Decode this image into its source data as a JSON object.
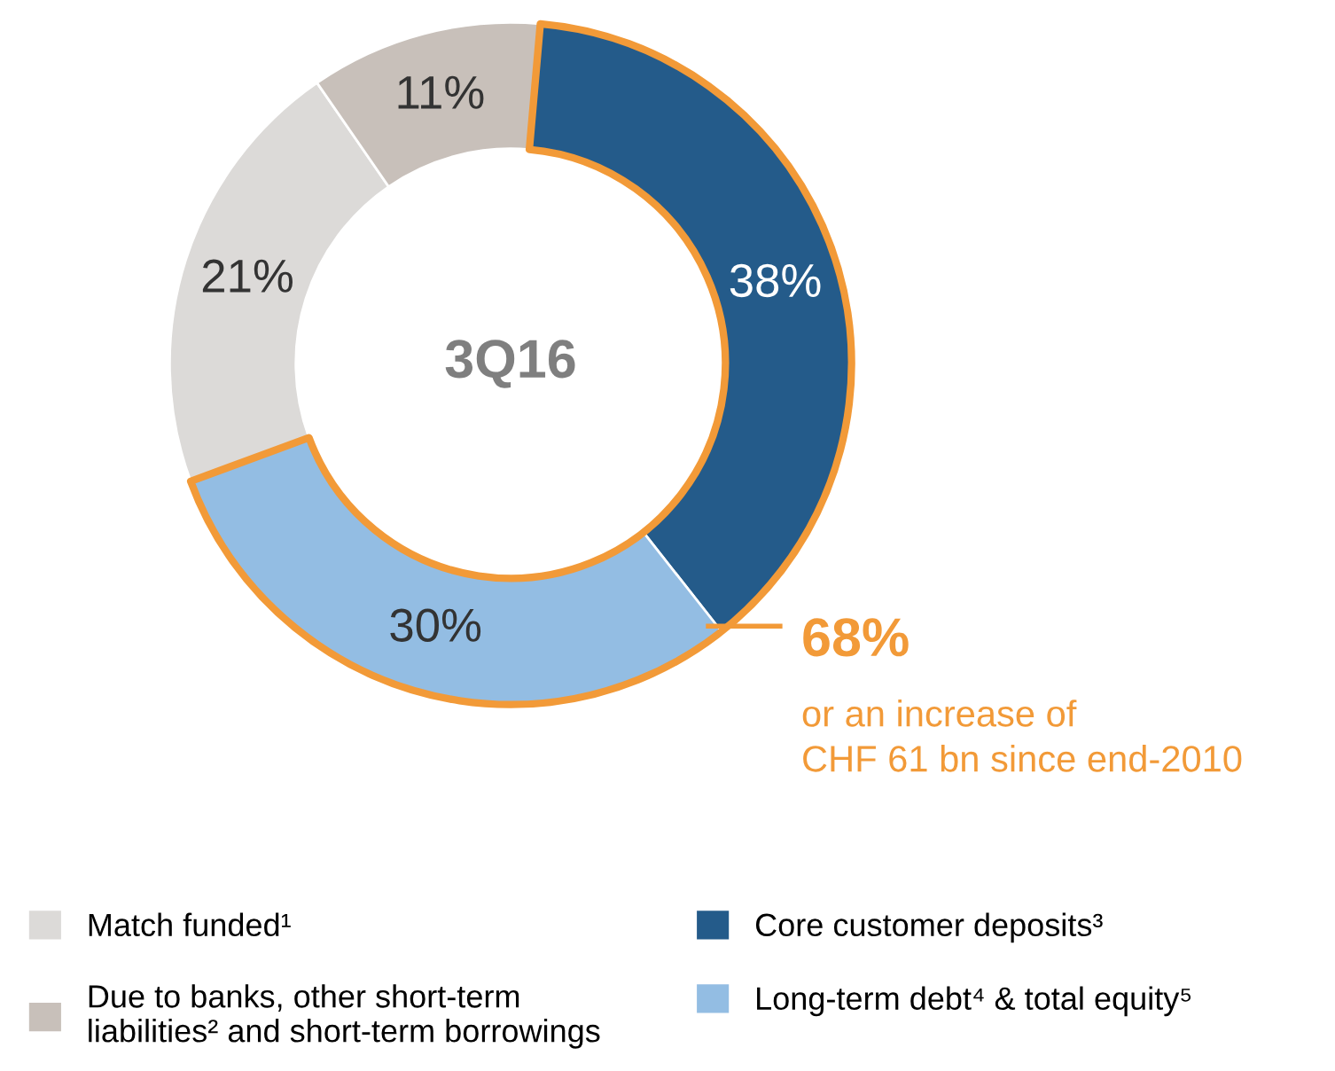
{
  "chart_data": {
    "type": "donut",
    "title": "3Q16",
    "categories": [
      "Core customer deposits³",
      "Long-term debt⁴ & total equity⁵",
      "Match funded¹",
      "Due to banks, other short-term\nliabilities² and short-term borrowings"
    ],
    "values": [
      38,
      30,
      21,
      11
    ],
    "colors": [
      "#245b8a",
      "#93bde3",
      "#dcdad8",
      "#c8c0ba"
    ],
    "value_labels": [
      "38%",
      "30%",
      "21%",
      "11%"
    ],
    "legend": "bottom",
    "annotations": [
      "68%",
      "or an increase of\nCHF 61 bn since end-2010"
    ]
  }
}
